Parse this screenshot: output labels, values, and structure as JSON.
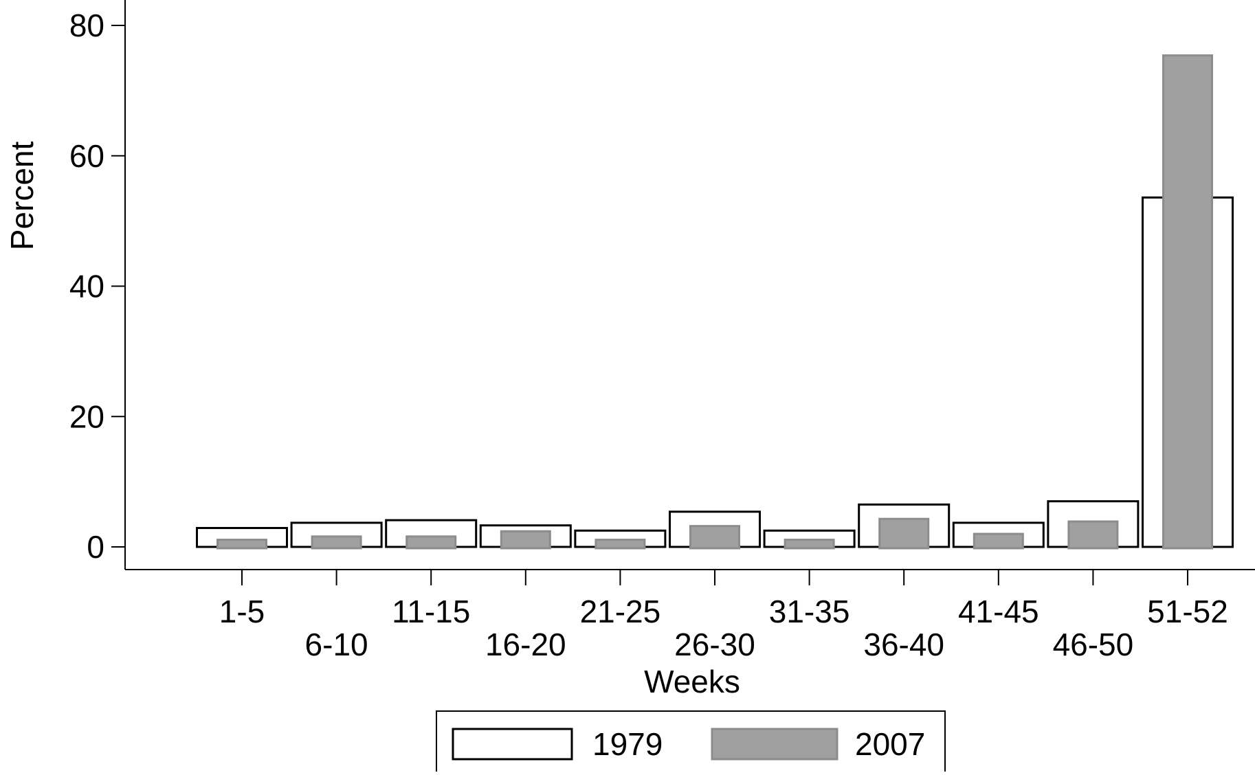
{
  "chart_data": {
    "type": "bar",
    "title": "",
    "xlabel": "Weeks",
    "ylabel": "Percent",
    "ylim": [
      0,
      80
    ],
    "yticks": [
      0,
      20,
      40,
      60,
      80
    ],
    "grid": false,
    "legend_position": "bottom",
    "categories": [
      "1-5",
      "6-10",
      "11-15",
      "16-20",
      "21-25",
      "26-30",
      "31-35",
      "36-40",
      "41-45",
      "46-50",
      "51-52"
    ],
    "series": [
      {
        "name": "1979",
        "fill": "#ffffff",
        "stroke": "#000000",
        "values": [
          2.9,
          3.7,
          4.1,
          3.3,
          2.5,
          5.4,
          2.5,
          6.5,
          3.7,
          7.0,
          53.6
        ]
      },
      {
        "name": "2007",
        "fill": "#a0a0a0",
        "stroke": "#8c8c8c",
        "values": [
          1.1,
          1.6,
          1.6,
          2.4,
          1.1,
          3.2,
          1.1,
          4.3,
          2.0,
          3.9,
          75.4
        ]
      }
    ]
  }
}
